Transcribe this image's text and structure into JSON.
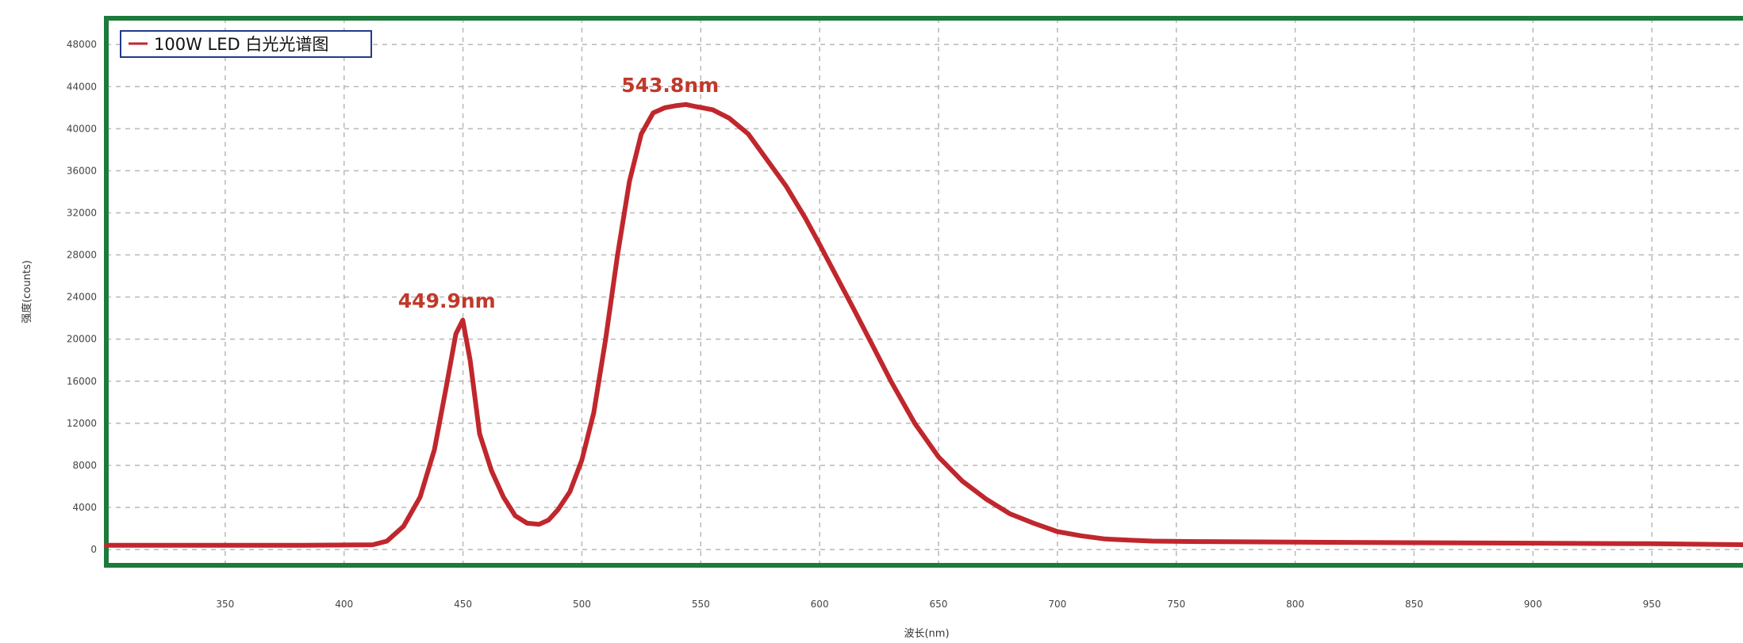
{
  "chart_data": {
    "type": "line",
    "title": "",
    "xlabel": "波长(nm)",
    "ylabel": "强度(counts)",
    "xlim": [
      300,
      990
    ],
    "ylim": [
      -1500,
      50500
    ],
    "x_ticks": [
      350,
      400,
      450,
      500,
      550,
      600,
      650,
      700,
      750,
      800,
      850,
      900,
      950
    ],
    "y_ticks": [
      0,
      4000,
      8000,
      12000,
      16000,
      20000,
      24000,
      28000,
      32000,
      36000,
      40000,
      44000,
      48000
    ],
    "grid": true,
    "legend_position": "top-left",
    "series": [
      {
        "name": "100W LED 白光光谱图",
        "color": "#c0272d",
        "x": [
          300,
          380,
          412,
          418,
          425,
          432,
          438,
          443,
          447,
          449.9,
          453,
          457,
          462,
          467,
          472,
          477,
          482,
          486,
          490,
          495,
          500,
          505,
          510,
          515,
          520,
          525,
          530,
          535,
          540,
          543.8,
          548,
          555,
          562,
          570,
          578,
          586,
          594,
          600,
          607,
          614,
          622,
          630,
          640,
          650,
          660,
          670,
          680,
          690,
          700,
          710,
          720,
          730,
          740,
          760,
          800,
          850,
          900,
          950,
          990
        ],
        "y": [
          400,
          400,
          450,
          800,
          2200,
          5000,
          9500,
          15500,
          20500,
          21800,
          18000,
          11000,
          7500,
          5000,
          3200,
          2500,
          2400,
          2800,
          3800,
          5500,
          8500,
          13000,
          20000,
          28000,
          35000,
          39500,
          41500,
          42000,
          42200,
          42300,
          42100,
          41800,
          41000,
          39500,
          37000,
          34500,
          31500,
          29000,
          26000,
          23000,
          19500,
          16000,
          12000,
          8800,
          6500,
          4800,
          3400,
          2500,
          1700,
          1300,
          1000,
          900,
          800,
          750,
          700,
          650,
          600,
          550,
          450
        ]
      }
    ],
    "annotations": [
      {
        "text": "449.9nm",
        "x": 449.9,
        "y": 21800
      },
      {
        "text": "543.8nm",
        "x": 543.8,
        "y": 42300
      }
    ],
    "colors": {
      "frame": "#1c7a3c",
      "grid": "#b8b8b8",
      "line": "#c0272d",
      "annotation": "#c0392b"
    }
  }
}
